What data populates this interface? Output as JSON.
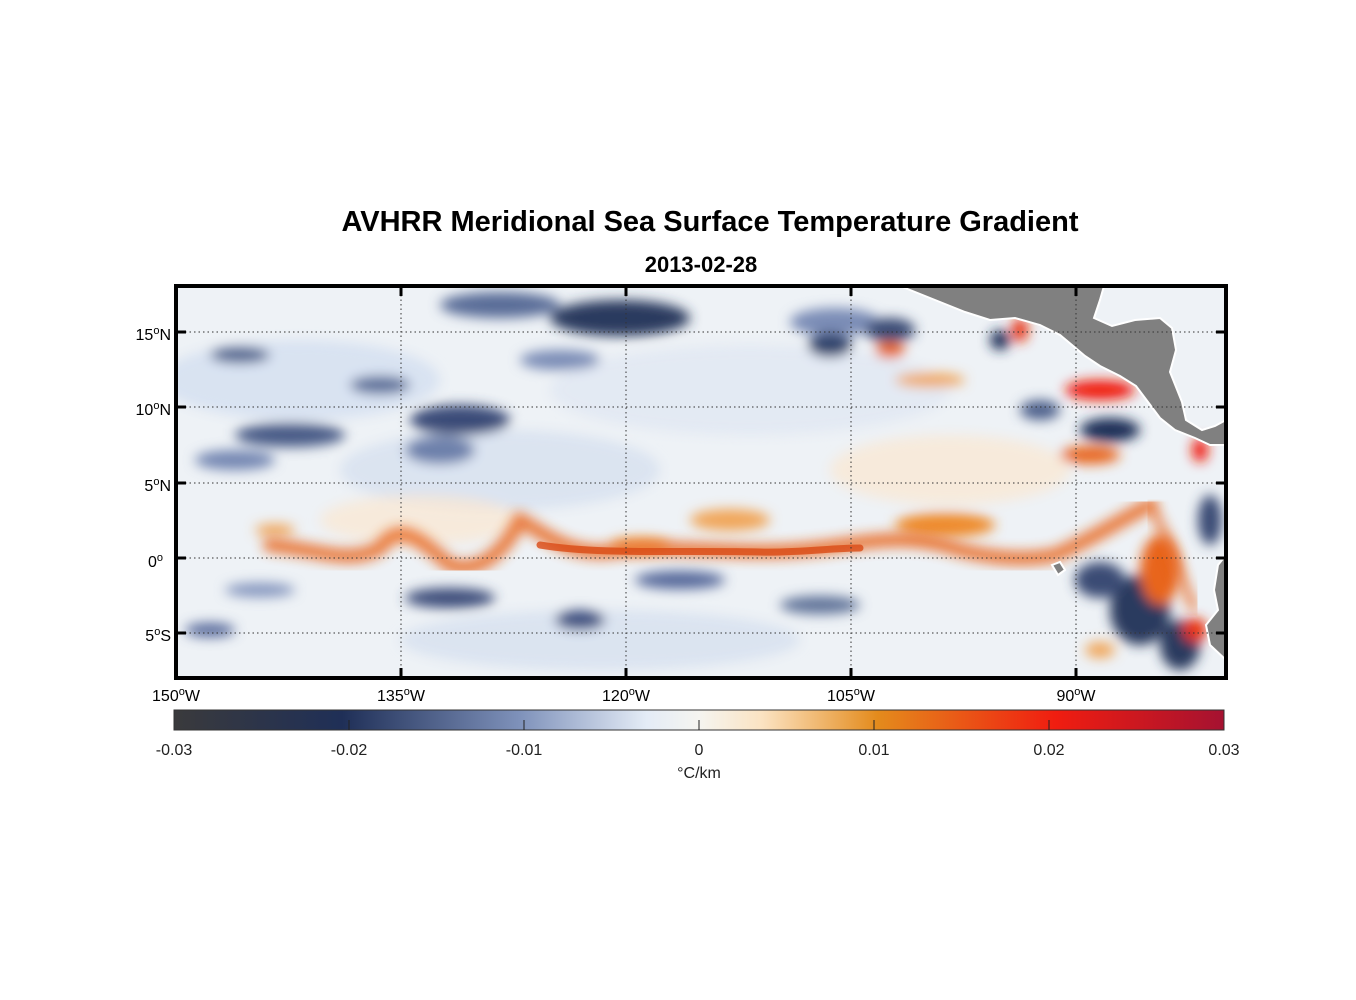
{
  "title": "AVHRR Meridional Sea Surface Temperature Gradient",
  "subtitle": "2013-02-28",
  "map": {
    "lon_range": [
      -150,
      -80
    ],
    "lat_range": [
      -8,
      18
    ],
    "land_color": "#808080",
    "lat_ticks": [
      {
        "value": 15,
        "num": "15",
        "deg": "o",
        "hem": "N"
      },
      {
        "value": 10,
        "num": "10",
        "deg": "o",
        "hem": "N"
      },
      {
        "value": 5,
        "num": "5",
        "deg": "o",
        "hem": "N"
      },
      {
        "value": 0,
        "num": "0",
        "deg": "o",
        "hem": ""
      },
      {
        "value": -5,
        "num": "5",
        "deg": "o",
        "hem": "S"
      }
    ],
    "lon_ticks": [
      {
        "value": -150,
        "num": "150",
        "deg": "o",
        "hem": "W"
      },
      {
        "value": -135,
        "num": "135",
        "deg": "o",
        "hem": "W"
      },
      {
        "value": -120,
        "num": "120",
        "deg": "o",
        "hem": "W"
      },
      {
        "value": -105,
        "num": "105",
        "deg": "o",
        "hem": "W"
      },
      {
        "value": -90,
        "num": "90",
        "deg": "o",
        "hem": "W"
      }
    ]
  },
  "colorbar": {
    "min": -0.03,
    "max": 0.03,
    "ticks": [
      "-0.03",
      "-0.02",
      "-0.01",
      "0",
      "0.01",
      "0.02",
      "0.03"
    ],
    "tick_values": [
      -0.03,
      -0.02,
      -0.01,
      0,
      0.01,
      0.02,
      0.03
    ],
    "units": "°C/km",
    "stops": [
      "#3a3a3c",
      "#1f2f57",
      "#7f92bb",
      "#e4ecf6",
      "#f5f5f0",
      "#fbe3c2",
      "#e48b1c",
      "#f01d10",
      "#a51231"
    ]
  }
}
